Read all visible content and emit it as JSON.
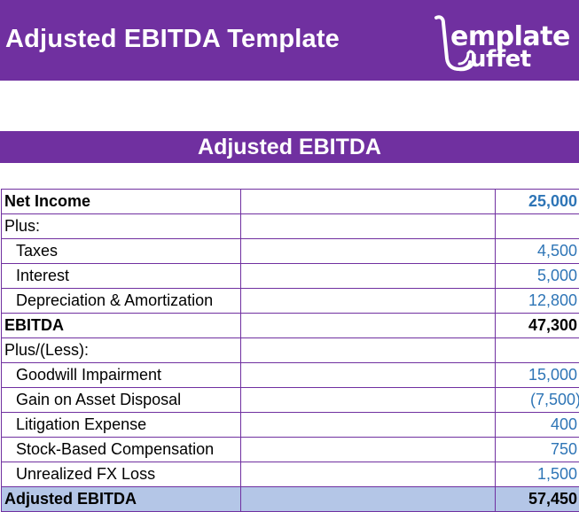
{
  "header": {
    "title": "Adjusted EBITDA Template",
    "logo_line1": "emplate",
    "logo_line2": "uffet"
  },
  "section": {
    "title": "Adjusted EBITDA"
  },
  "rows": [
    {
      "label": "Net Income",
      "value": "25,000"
    },
    {
      "label": "Plus:",
      "value": ""
    },
    {
      "label": "Taxes",
      "value": "4,500"
    },
    {
      "label": "Interest",
      "value": "5,000"
    },
    {
      "label": "Depreciation & Amortization",
      "value": "12,800"
    },
    {
      "label": "EBITDA",
      "value": "47,300"
    },
    {
      "label": "Plus/(Less):",
      "value": ""
    },
    {
      "label": "Goodwill Impairment",
      "value": "15,000"
    },
    {
      "label": "Gain on Asset Disposal",
      "value": "(7,500)"
    },
    {
      "label": "Litigation Expense",
      "value": "400"
    },
    {
      "label": "Stock-Based Compensation",
      "value": "750"
    },
    {
      "label": "Unrealized FX Loss",
      "value": "1,500"
    },
    {
      "label": "Adjusted EBITDA",
      "value": "57,450"
    }
  ],
  "colors": {
    "brand_purple": "#7030a0",
    "input_blue": "#2e75b6",
    "total_fill": "#b4c6e7"
  }
}
